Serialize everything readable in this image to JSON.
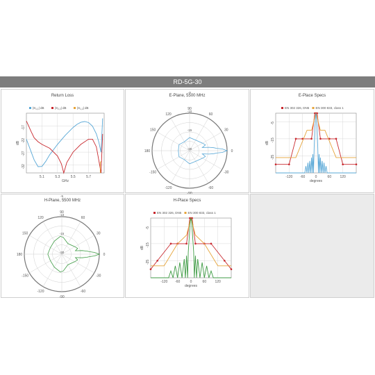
{
  "header": {
    "title": "RD-5G-30"
  },
  "colors": {
    "header_bg": "#7d7d7d",
    "blue": "#57a7d6",
    "red": "#c8272d",
    "orange": "#e6a43a",
    "green": "#3e9b44",
    "grid": "#cfcfcf"
  },
  "chart_data": [
    {
      "type": "line",
      "title": "Return Loss",
      "xlabel": "GHz",
      "ylabel": "dB",
      "xlim": [
        4.9,
        5.9
      ],
      "ylim": [
        -35,
        -12
      ],
      "xticks": [
        5.1,
        5.3,
        5.5,
        5.7
      ],
      "yticks": [
        -17,
        -22,
        -27,
        -32
      ],
      "grid": true,
      "legend_position": "top",
      "series": [
        {
          "name": "|S11| dB",
          "name_base": "|S",
          "name_sub": "1,1",
          "name_end": "| dB",
          "color": "#57a7d6",
          "x": [
            4.9,
            4.95,
            5.0,
            5.05,
            5.1,
            5.15,
            5.2,
            5.3,
            5.4,
            5.5,
            5.55,
            5.6,
            5.65,
            5.7,
            5.75,
            5.8,
            5.83,
            5.86,
            5.88
          ],
          "y": [
            -22,
            -26,
            -30,
            -32.6,
            -32.5,
            -30.5,
            -28,
            -24,
            -20.5,
            -17.5,
            -16.3,
            -15.5,
            -15.2,
            -15.6,
            -17,
            -20,
            -23,
            -27,
            -14
          ]
        },
        {
          "name": "|S22| dB",
          "name_base": "|S",
          "name_sub": "2,2",
          "name_end": "| dB",
          "color": "#c8272d",
          "x": [
            4.9,
            4.93,
            4.96,
            5.0,
            5.05,
            5.1,
            5.2,
            5.3,
            5.35,
            5.38,
            5.42,
            5.5,
            5.6,
            5.7,
            5.75,
            5.8,
            5.83,
            5.86,
            5.88
          ],
          "y": [
            -15,
            -17,
            -19,
            -21.5,
            -23,
            -24,
            -25.5,
            -28.5,
            -31.5,
            -35,
            -31,
            -27,
            -24,
            -22,
            -22,
            -25,
            -30,
            -35,
            -20
          ]
        },
        {
          "name": "|S12| dB",
          "name_base": "|S",
          "name_sub": "1,2",
          "name_end": "| dB",
          "color": "#e6a43a",
          "x": [
            5.85,
            5.85,
            5.86
          ],
          "y": [
            -35,
            -31,
            -30.5
          ]
        }
      ]
    },
    {
      "type": "polar",
      "title": "E-Plane, 5500 MHz",
      "angle_labels": [
        "0",
        "30",
        "60",
        "90",
        "120",
        "150",
        "180",
        "-150",
        "-120",
        "-90",
        "-60",
        "-30"
      ],
      "radial_labels": [
        "-30",
        "-15",
        "-10",
        "-5"
      ],
      "grid": true,
      "series": [
        {
          "name": "",
          "color": "#57a7d6",
          "angles": [
            -180,
            -150,
            -120,
            -90,
            -60,
            -30,
            -20,
            -14,
            -10,
            -7,
            -5,
            -3,
            0,
            3,
            5,
            7,
            10,
            14,
            20,
            30,
            60,
            90,
            120,
            150,
            180
          ],
          "r": [
            -28,
            -27,
            -29,
            -26,
            -27,
            -24,
            -22,
            -26,
            -19,
            -14,
            -11,
            -5,
            0,
            -5,
            -11,
            -14,
            -19,
            -26,
            -22,
            -24,
            -27,
            -26,
            -29,
            -27,
            -28
          ]
        }
      ]
    },
    {
      "type": "line",
      "title": "E-Place Specs",
      "xlabel": "degrees",
      "ylabel": "dB",
      "xlim": [
        -180,
        180
      ],
      "ylim": [
        -35,
        0
      ],
      "xticks": [
        -120,
        -60,
        0,
        60,
        120
      ],
      "yticks": [
        -5,
        -15,
        -25
      ],
      "grid": true,
      "legend_position": "top",
      "series": [
        {
          "name": "EN 302 326, DN5",
          "color": "#c8272d",
          "markers": true,
          "x": [
            -180,
            -120,
            -90,
            -60,
            -20,
            -5,
            0,
            5,
            20,
            60,
            90,
            120,
            180
          ],
          "y": [
            -30,
            -30,
            -15,
            -15,
            -15,
            0,
            0,
            0,
            -15,
            -15,
            -15,
            -30,
            -30
          ]
        },
        {
          "name": "EN 300 833, class 1",
          "color": "#e6a43a",
          "x": [
            -180,
            -90,
            -40,
            -20,
            -10,
            -5,
            0,
            5,
            10,
            20,
            40,
            90,
            180
          ],
          "y": [
            -26,
            -26,
            -10,
            -10,
            -5,
            -2,
            0,
            -2,
            -5,
            -10,
            -10,
            -26,
            -26
          ]
        },
        {
          "name": "",
          "color": "#57a7d6",
          "x": [
            -180,
            -50,
            -45,
            -40,
            -36,
            -32,
            -28,
            -24,
            -20,
            -17,
            -14,
            -11,
            -8,
            -5,
            -3,
            0,
            3,
            5,
            8,
            11,
            14,
            17,
            20,
            24,
            28,
            32,
            36,
            40,
            45,
            50,
            180
          ],
          "y": [
            -35,
            -35,
            -31,
            -35,
            -29,
            -35,
            -28,
            -35,
            -26,
            -35,
            -24,
            -35,
            -20,
            -9,
            -4,
            0,
            -4,
            -9,
            -20,
            -35,
            -24,
            -35,
            -26,
            -35,
            -28,
            -35,
            -29,
            -35,
            -31,
            -35,
            -35
          ]
        }
      ]
    },
    {
      "type": "polar",
      "title": "H-Plane, 5500 MHz",
      "angle_labels": [
        "0",
        "30",
        "60",
        "90",
        "120",
        "150",
        "180",
        "-150",
        "-120",
        "-90",
        "-60",
        "-30"
      ],
      "radial_labels": [
        "-30",
        "-15",
        "-10",
        "-5"
      ],
      "grid": true,
      "series": [
        {
          "name": "",
          "color": "#3e9b44",
          "angles": [
            -180,
            -150,
            -120,
            -95,
            -85,
            -60,
            -30,
            -20,
            -14,
            -10,
            -7,
            -5,
            -3,
            0,
            3,
            5,
            7,
            10,
            14,
            20,
            30,
            60,
            85,
            95,
            120,
            150,
            180
          ],
          "r": [
            -25,
            -26,
            -24,
            -21,
            -22,
            -27,
            -24,
            -22,
            -25,
            -18,
            -13,
            -10,
            -5,
            0,
            -5,
            -10,
            -13,
            -18,
            -25,
            -22,
            -24,
            -27,
            -22,
            -21,
            -24,
            -26,
            -25
          ]
        }
      ]
    },
    {
      "type": "line",
      "title": "H-Place Specs",
      "xlabel": "degrees",
      "ylabel": "dB",
      "xlim": [
        -180,
        180
      ],
      "ylim": [
        -35,
        0
      ],
      "xticks": [
        -120,
        -60,
        0,
        60,
        120
      ],
      "yticks": [
        -5,
        -15,
        -25
      ],
      "grid": true,
      "legend_position": "top",
      "series": [
        {
          "name": "EN 302 326, DN5",
          "color": "#c8272d",
          "markers": true,
          "x": [
            -180,
            -150,
            -90,
            -60,
            -20,
            -5,
            0,
            5,
            20,
            60,
            90,
            150,
            180
          ],
          "y": [
            -30,
            -25,
            -15,
            -15,
            -15,
            0,
            0,
            0,
            -15,
            -15,
            -15,
            -25,
            -30
          ]
        },
        {
          "name": "EN 300 833, class 1",
          "color": "#e6a43a",
          "x": [
            -180,
            -120,
            -60,
            -20,
            -10,
            -5,
            0,
            5,
            10,
            20,
            60,
            120,
            180
          ],
          "y": [
            -28,
            -28,
            -15,
            -10,
            -5,
            -2,
            0,
            -2,
            -5,
            -10,
            -15,
            -28,
            -28
          ]
        },
        {
          "name": "",
          "color": "#3e9b44",
          "x": [
            -180,
            -100,
            -90,
            -80,
            -70,
            -60,
            -50,
            -40,
            -30,
            -25,
            -20,
            -15,
            -12,
            -8,
            -5,
            -3,
            0,
            3,
            5,
            8,
            12,
            15,
            20,
            25,
            30,
            40,
            50,
            60,
            70,
            80,
            90,
            100,
            180
          ],
          "y": [
            -35,
            -35,
            -31,
            -35,
            -28,
            -35,
            -26,
            -35,
            -24,
            -35,
            -22,
            -35,
            -20,
            -12,
            -5,
            -2,
            0,
            -2,
            -5,
            -12,
            -20,
            -35,
            -22,
            -35,
            -24,
            -35,
            -26,
            -35,
            -28,
            -35,
            -31,
            -35,
            -35
          ]
        }
      ]
    }
  ]
}
